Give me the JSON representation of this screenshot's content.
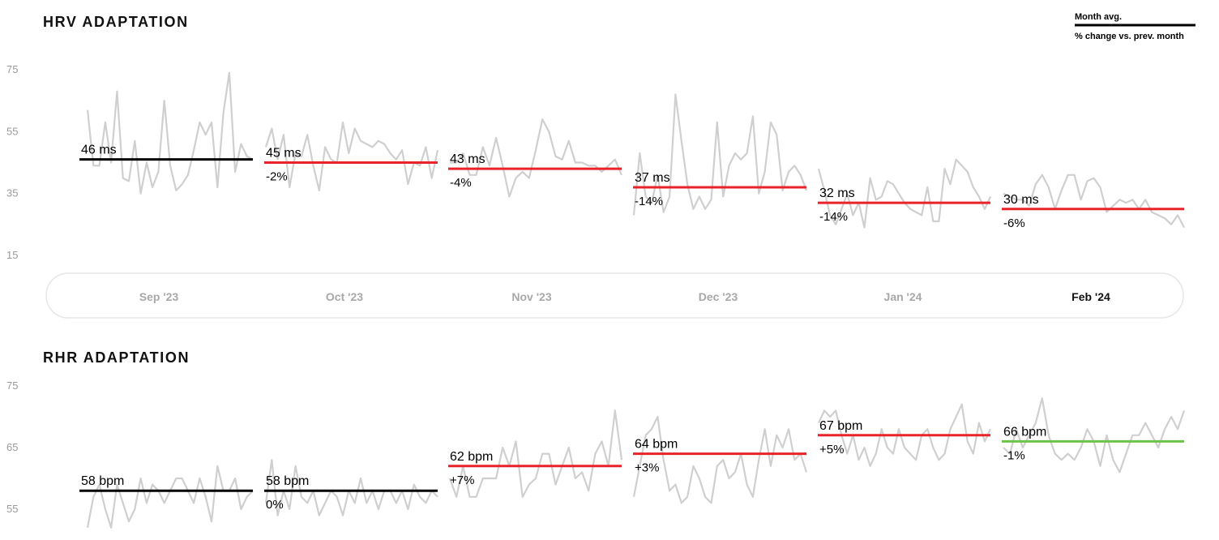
{
  "legend": {
    "avg_label": "Month avg.",
    "change_label": "% change vs. prev. month"
  },
  "timeline": {
    "months": [
      "Sep '23",
      "Oct '23",
      "Nov '23",
      "Dec '23",
      "Jan '24",
      "Feb '24"
    ],
    "active": "Feb '24"
  },
  "colors": {
    "baseline": "#000000",
    "increase_bad": "#e8232a",
    "improve": "#6cc24a",
    "daily_line": "#cfcfcf"
  },
  "chart_data": [
    {
      "id": "hrv",
      "type": "line",
      "title": "HRV ADAPTATION",
      "y_ticks": [
        75,
        55,
        35,
        15
      ],
      "ylim": [
        15,
        75
      ],
      "unit": "ms",
      "monthly": [
        {
          "month": "Sep '23",
          "avg": 46,
          "label": "46 ms",
          "change": "",
          "status": "baseline"
        },
        {
          "month": "Oct '23",
          "avg": 45,
          "label": "45 ms",
          "change": "-2%",
          "status": "increase_bad"
        },
        {
          "month": "Nov '23",
          "avg": 43,
          "label": "43 ms",
          "change": "-4%",
          "status": "increase_bad"
        },
        {
          "month": "Dec '23",
          "avg": 37,
          "label": "37 ms",
          "change": "-14%",
          "status": "increase_bad"
        },
        {
          "month": "Jan '24",
          "avg": 32,
          "label": "32 ms",
          "change": "-14%",
          "status": "increase_bad"
        },
        {
          "month": "Feb '24",
          "avg": 30,
          "label": "30 ms",
          "change": "-6%",
          "status": "increase_bad"
        }
      ],
      "daily": [
        [
          62,
          44,
          44,
          58,
          45,
          68,
          40,
          39,
          52,
          35,
          45,
          37,
          42,
          65,
          44,
          36,
          38,
          41,
          49,
          58,
          54,
          58,
          37,
          61,
          74,
          42,
          51,
          47,
          46
        ],
        [
          50,
          56,
          46,
          54,
          37,
          48,
          47,
          54,
          44,
          36,
          50,
          46,
          45,
          58,
          48,
          56,
          52,
          51,
          50,
          52,
          51,
          48,
          46,
          49,
          38,
          45,
          44,
          50,
          40,
          49
        ],
        [
          45,
          45,
          48,
          41,
          41,
          50,
          44,
          53,
          44,
          34,
          40,
          42,
          40,
          49,
          59,
          55,
          47,
          46,
          52,
          45,
          45,
          44,
          44,
          42,
          44,
          46,
          41
        ],
        [
          28,
          48,
          34,
          32,
          41,
          29,
          34,
          67,
          52,
          38,
          30,
          34,
          30,
          33,
          58,
          34,
          44,
          48,
          46,
          48,
          60,
          35,
          42,
          58,
          54,
          36,
          42,
          44,
          41,
          36
        ],
        [
          43,
          36,
          28,
          25,
          30,
          35,
          28,
          32,
          24,
          40,
          33,
          34,
          39,
          38,
          35,
          32,
          30,
          29,
          28,
          37,
          26,
          26,
          43,
          38,
          46,
          44,
          42,
          37,
          34,
          30,
          34
        ],
        [
          35,
          34,
          33,
          33,
          31,
          38,
          41,
          37,
          30,
          36,
          41,
          41,
          33,
          39,
          40,
          37,
          29,
          31,
          33,
          32,
          33,
          30,
          33,
          29,
          28,
          27,
          25,
          28,
          24
        ]
      ]
    },
    {
      "id": "rhr",
      "type": "line",
      "title": "RHR ADAPTATION",
      "y_ticks": [
        75,
        65,
        55
      ],
      "ylim": [
        55,
        75
      ],
      "unit": "bpm",
      "monthly": [
        {
          "month": "Sep '23",
          "avg": 58,
          "label": "58 bpm",
          "change": "",
          "status": "baseline"
        },
        {
          "month": "Oct '23",
          "avg": 58,
          "label": "58 bpm",
          "change": "0%",
          "status": "baseline"
        },
        {
          "month": "Nov '23",
          "avg": 62,
          "label": "62 bpm",
          "change": "+7%",
          "status": "increase_bad"
        },
        {
          "month": "Dec '23",
          "avg": 64,
          "label": "64 bpm",
          "change": "+3%",
          "status": "increase_bad"
        },
        {
          "month": "Jan '24",
          "avg": 67,
          "label": "67 bpm",
          "change": "+5%",
          "status": "increase_bad"
        },
        {
          "month": "Feb '24",
          "avg": 66,
          "label": "66 bpm",
          "change": "-1%",
          "status": "improve"
        }
      ],
      "daily": [
        [
          52,
          57,
          59,
          55,
          52,
          59,
          56,
          53,
          55,
          60,
          56,
          59,
          58,
          56,
          58,
          60,
          60,
          58,
          56,
          60,
          57,
          53,
          62,
          58,
          58,
          60,
          55,
          57,
          58
        ],
        [
          56,
          63,
          54,
          58,
          55,
          62,
          57,
          56,
          58,
          54,
          56,
          58,
          57,
          54,
          58,
          56,
          60,
          56,
          58,
          55,
          58,
          58,
          56,
          58,
          55,
          59,
          57,
          56,
          58,
          57
        ],
        [
          60,
          57,
          62,
          57,
          57,
          60,
          60,
          60,
          65,
          62,
          66,
          57,
          59,
          60,
          64,
          64,
          59,
          62,
          65,
          60,
          61,
          58,
          64,
          66,
          62,
          71,
          63
        ],
        [
          57,
          62,
          67,
          68,
          70,
          63,
          58,
          59,
          56,
          57,
          62,
          60,
          57,
          56,
          62,
          63,
          60,
          61,
          64,
          59,
          57,
          63,
          68,
          62,
          67,
          65,
          68,
          63,
          64,
          61
        ],
        [
          69,
          71,
          70,
          71,
          67,
          64,
          67,
          63,
          65,
          62,
          64,
          68,
          65,
          64,
          68,
          65,
          64,
          63,
          67,
          68,
          65,
          63,
          64,
          68,
          70,
          72,
          66,
          64,
          69,
          66,
          68
        ],
        [
          65,
          64,
          68,
          65,
          67,
          69,
          73,
          67,
          64,
          63,
          64,
          63,
          65,
          68,
          66,
          62,
          67,
          63,
          61,
          64,
          67,
          67,
          69,
          67,
          65,
          68,
          70,
          68,
          71
        ]
      ]
    }
  ]
}
